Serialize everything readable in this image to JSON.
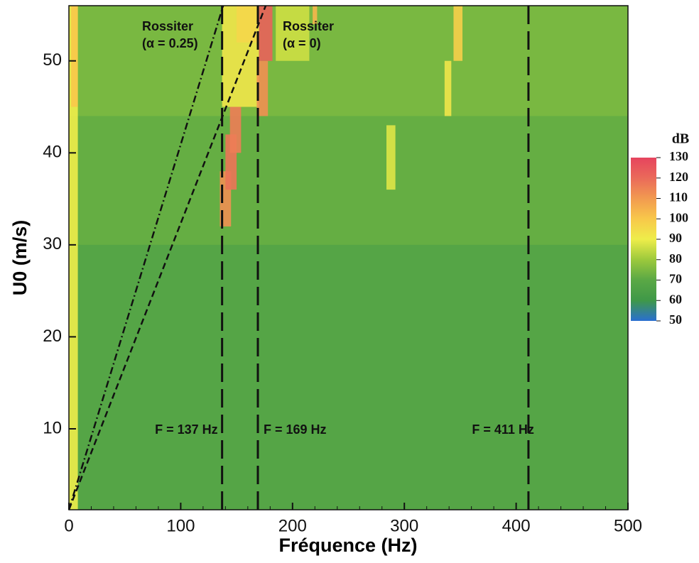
{
  "chart_data": {
    "type": "heatmap",
    "x_label": "Fréquence (Hz)",
    "y_label": "U0 (m/s)",
    "xlim": [
      0,
      500
    ],
    "ylim": [
      1.2,
      56
    ],
    "xticks": [
      0,
      100,
      200,
      300,
      400,
      500
    ],
    "yticks": [
      10,
      20,
      30,
      40,
      50
    ],
    "background_level": 68,
    "regions": [
      {
        "f": [
          0,
          500
        ],
        "u": [
          30,
          56
        ],
        "level": 72
      },
      {
        "f": [
          0,
          500
        ],
        "u": [
          44,
          56
        ],
        "level": 75
      },
      {
        "f": [
          0,
          8
        ],
        "u": [
          1.2,
          56
        ],
        "level": 90
      },
      {
        "f": [
          2,
          8
        ],
        "u": [
          45,
          56
        ],
        "level": 100
      },
      {
        "f": [
          137,
          170
        ],
        "u": [
          45,
          56
        ],
        "level": 92
      },
      {
        "f": [
          150,
          168
        ],
        "u": [
          52,
          56
        ],
        "level": 96
      },
      {
        "f": [
          135,
          145
        ],
        "u": [
          32,
          38
        ],
        "level": 112
      },
      {
        "f": [
          140,
          150
        ],
        "u": [
          36,
          42
        ],
        "level": 118
      },
      {
        "f": [
          144,
          154
        ],
        "u": [
          40,
          45
        ],
        "level": 116
      },
      {
        "f": [
          168,
          178
        ],
        "u": [
          44,
          50
        ],
        "level": 112
      },
      {
        "f": [
          170,
          182
        ],
        "u": [
          50,
          56
        ],
        "level": 122
      },
      {
        "f": [
          185,
          215
        ],
        "u": [
          50,
          56
        ],
        "level": 86
      },
      {
        "f": [
          218,
          222
        ],
        "u": [
          54,
          56
        ],
        "level": 104
      },
      {
        "f": [
          336,
          342
        ],
        "u": [
          44,
          50
        ],
        "level": 92
      },
      {
        "f": [
          344,
          352
        ],
        "u": [
          50,
          56
        ],
        "level": 98
      },
      {
        "f": [
          284,
          292
        ],
        "u": [
          36,
          43
        ],
        "level": 88
      }
    ],
    "series": [
      {
        "label_lines": [
          "Rossiter",
          "(α = 0.25)"
        ],
        "style": "dashdot",
        "x": [
          0,
          138
        ],
        "values": [
          1.2,
          56
        ]
      },
      {
        "label_lines": [
          "Rossiter",
          "(α = 0)"
        ],
        "style": "dashed",
        "x": [
          0,
          176
        ],
        "values": [
          1.2,
          56
        ]
      }
    ],
    "vlines": [
      {
        "x": 137,
        "label": "F = 137 Hz"
      },
      {
        "x": 169,
        "label": "F = 169 Hz"
      },
      {
        "x": 411,
        "label": "F = 411 Hz"
      }
    ],
    "colorbar": {
      "title": "dB",
      "lim": [
        50,
        130
      ],
      "ticks": [
        50,
        60,
        70,
        80,
        90,
        100,
        110,
        120,
        130
      ],
      "colors": [
        "#2a6fd0",
        "#3f9848",
        "#5aa845",
        "#9cc93c",
        "#eeed4a",
        "#f8c84a",
        "#f29a50",
        "#ea6a5a",
        "#e6445e"
      ]
    }
  }
}
